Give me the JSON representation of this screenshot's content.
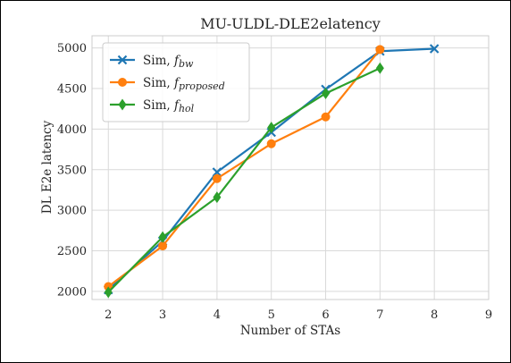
{
  "chart_data": {
    "type": "line",
    "title": "MU-ULDL-DLE2elatency",
    "xlabel": "Number of STAs",
    "ylabel": "DL E2e latency",
    "xlim": [
      1.7,
      9.0
    ],
    "ylim": [
      1900,
      5150
    ],
    "xticks": [
      2,
      3,
      4,
      5,
      6,
      7,
      8,
      9
    ],
    "yticks": [
      2000,
      2500,
      3000,
      3500,
      4000,
      4500,
      5000
    ],
    "grid": true,
    "legend_position": "top-left",
    "series": [
      {
        "name_main": "Sim, ",
        "name_sub": "bw",
        "color": "#1f77b4",
        "marker": "x",
        "x": [
          2,
          3,
          4,
          5,
          6,
          7,
          8
        ],
        "y": [
          2020,
          2620,
          3470,
          3960,
          4490,
          4960,
          4990
        ]
      },
      {
        "name_main": "Sim, ",
        "name_sub": "proposed",
        "color": "#ff7f0e",
        "marker": "o",
        "x": [
          2,
          3,
          4,
          5,
          6,
          7
        ],
        "y": [
          2060,
          2560,
          3390,
          3820,
          4150,
          4980
        ]
      },
      {
        "name_main": "Sim, ",
        "name_sub": "hol",
        "color": "#2ca02c",
        "marker": "d",
        "x": [
          2,
          3,
          4,
          5,
          6,
          7
        ],
        "y": [
          1990,
          2670,
          3160,
          4020,
          4440,
          4750
        ]
      }
    ]
  }
}
